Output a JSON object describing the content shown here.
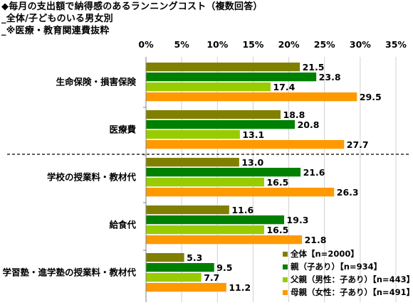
{
  "title_lines": [
    "◆毎月の支出額で納得感のあるランニングコスト（複数回答）",
    "_全体/子どものいる男女別",
    "_※医療・教育関連費抜粋"
  ],
  "colors": {
    "overall": "#808000",
    "parents": "#008000",
    "fathers": "#99cc00",
    "mothers": "#ff9900"
  },
  "chart_data": {
    "type": "bar",
    "orientation": "horizontal",
    "xlim": [
      0,
      35
    ],
    "xticks": [
      "0%",
      "5%",
      "10%",
      "15%",
      "20%",
      "25%",
      "30%",
      "35%"
    ],
    "categories": [
      "生命保険・損害保険",
      "医療費",
      "学校の授業料・教材代",
      "給食代",
      "学習塾・進学塾の授業料・教材代"
    ],
    "series": [
      {
        "name": "全体【n=2000】",
        "values": [
          21.5,
          18.8,
          13.0,
          11.6,
          5.3
        ]
      },
      {
        "name": "親（子あり）【n=934】",
        "values": [
          23.8,
          20.8,
          21.6,
          19.3,
          9.5
        ]
      },
      {
        "name": "父親（男性：子あり）【n=443】",
        "values": [
          17.4,
          13.1,
          16.5,
          16.5,
          7.7
        ]
      },
      {
        "name": "母親（女性：子あり）【n=491】",
        "values": [
          29.5,
          27.7,
          26.3,
          21.8,
          11.2
        ]
      }
    ],
    "value_labels": [
      [
        "21.5",
        "18.8",
        "13.0",
        "11.6",
        "5.3"
      ],
      [
        "23.8",
        "20.8",
        "21.6",
        "19.3",
        "9.5"
      ],
      [
        "17.4",
        "13.1",
        "16.5",
        "16.5",
        "7.7"
      ],
      [
        "29.5",
        "27.7",
        "26.3",
        "21.8",
        "11.2"
      ]
    ],
    "divider_after_category": "医療費",
    "legend_position": "bottom-right"
  }
}
